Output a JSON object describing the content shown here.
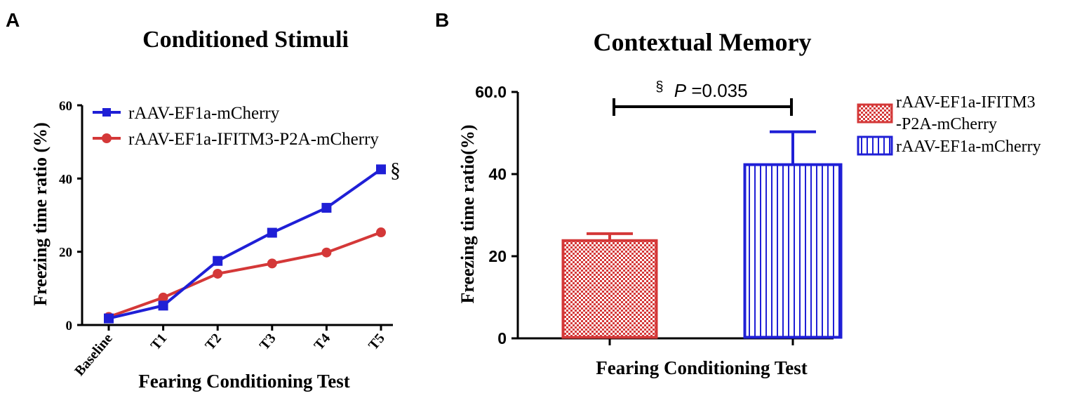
{
  "colors": {
    "blue": "#1f1fd6",
    "red": "#d43838",
    "axis": "#000000"
  },
  "panel_a": {
    "panel_label": "A",
    "section_mark": "§"
  },
  "panel_b": {
    "panel_label": "B",
    "significance": {
      "symbol": "§",
      "p_italic": "P",
      "p_value": "=0.035"
    }
  },
  "chart_data": [
    {
      "type": "line",
      "title": "Conditioned Stimuli",
      "xlabel": "Fearing Conditioning Test",
      "ylabel": "Freezing time ratio (%)",
      "categories": [
        "Baseline",
        "T1",
        "T2",
        "T3",
        "T4",
        "T5"
      ],
      "ylim": [
        0,
        60
      ],
      "yticks": [
        0,
        20,
        40,
        60
      ],
      "legend_position": "top-left",
      "series": [
        {
          "name": "rAAV-EF1a-mCherry",
          "marker": "square",
          "color": "#1f1fd6",
          "values": [
            1.8,
            5.3,
            17.5,
            25.2,
            32.0,
            42.5
          ]
        },
        {
          "name": "rAAV-EF1a-IFITM3-P2A-mCherry",
          "marker": "circle",
          "color": "#d43838",
          "values": [
            2.2,
            7.5,
            14.0,
            16.8,
            19.8,
            25.3
          ]
        }
      ]
    },
    {
      "type": "bar",
      "title": "Contextual Memory",
      "xlabel": "Fearing Conditioning Test",
      "ylabel": "Freezing time ratio(%)",
      "ylim": [
        0,
        60
      ],
      "yticks": [
        "0",
        "20",
        "40",
        "60.0"
      ],
      "ytick_values": [
        0,
        20,
        40,
        60
      ],
      "legend_position": "right",
      "series": [
        {
          "name_line1": "rAAV-EF1a-IFITM3",
          "name_line2": "-P2A-mCherry",
          "pattern": "checker",
          "color": "#d43838",
          "value": 23.8,
          "error": 1.7
        },
        {
          "name": "rAAV-EF1a-mCherry",
          "pattern": "vertical-stripes",
          "color": "#1f1fd6",
          "value": 42.3,
          "error": 8.0
        }
      ]
    }
  ]
}
